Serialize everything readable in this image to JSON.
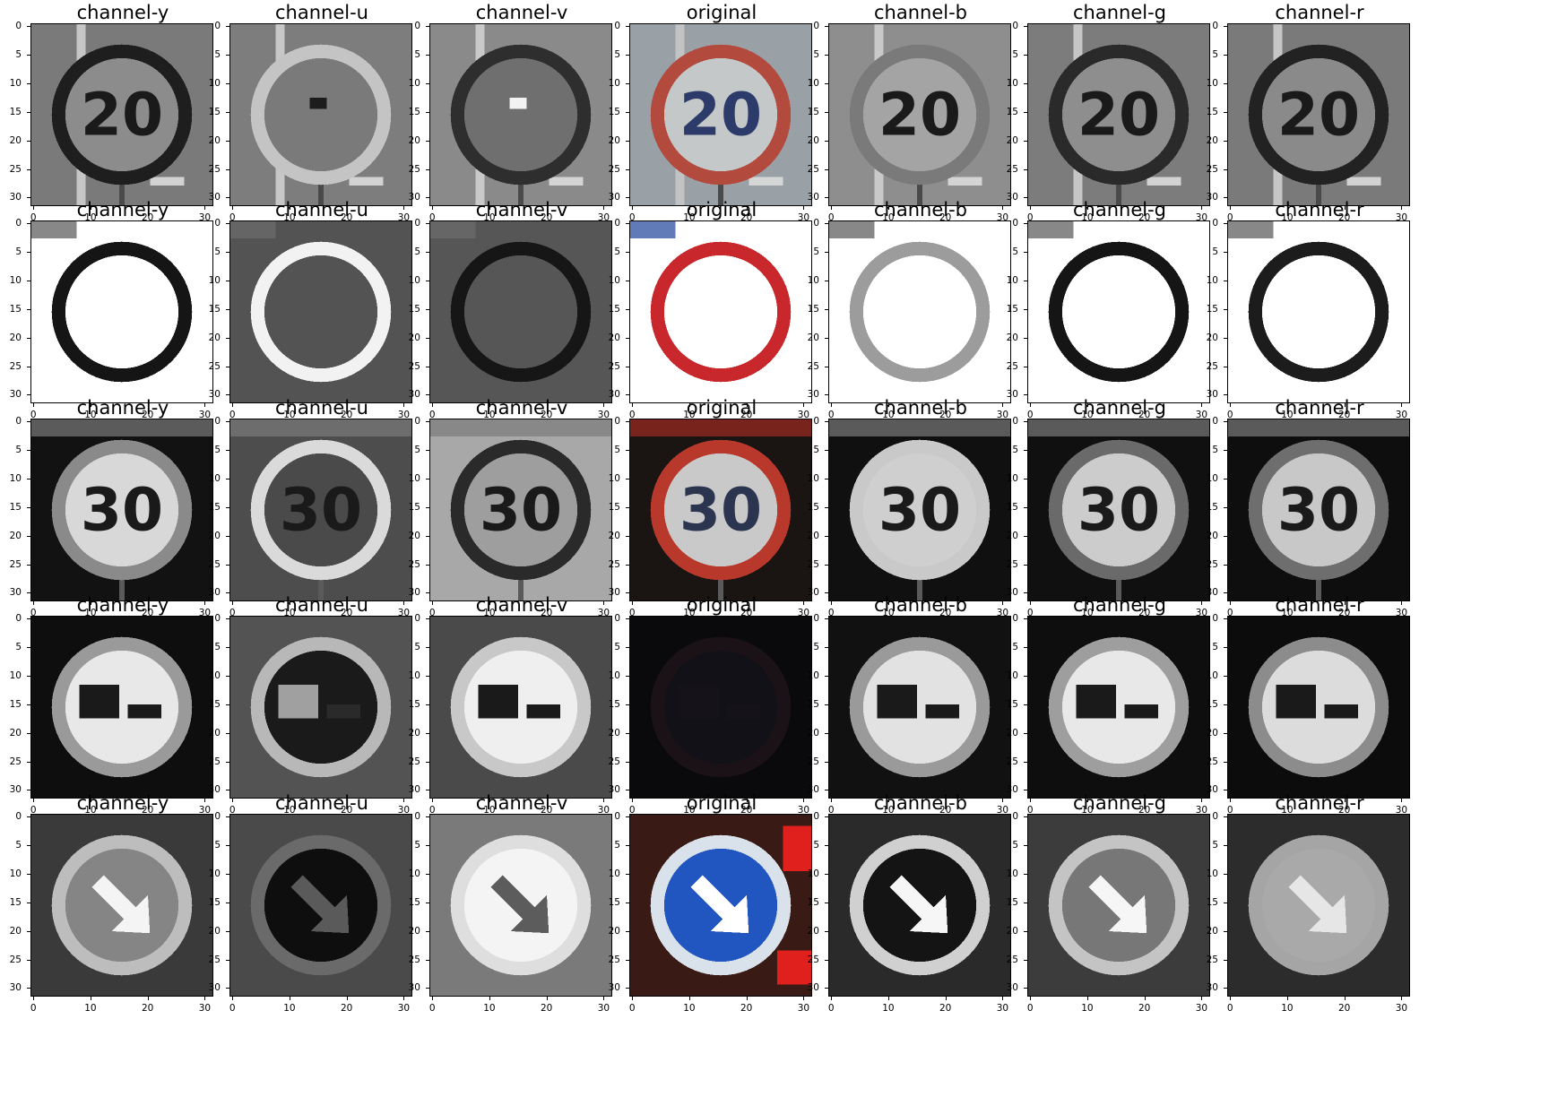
{
  "figure": {
    "rows": [
      {
        "sign": "speed-limit-20",
        "panels": [
          {
            "title": "channel-y",
            "mode": "gray",
            "bg": "#7a7a7a",
            "fg": "#1e1e1e",
            "text": "20",
            "shape": "ring-text",
            "fill": "#8c8c8c"
          },
          {
            "title": "channel-u",
            "mode": "gray",
            "bg": "#7d7d7d",
            "fg": "#c4c4c4",
            "text": "",
            "shape": "ring-dot",
            "fill": "#7a7a7a"
          },
          {
            "title": "channel-v",
            "mode": "gray",
            "bg": "#8a8a8a",
            "fg": "#2e2e2e",
            "text": "",
            "shape": "ring-dot",
            "fill": "#6f6f6f"
          },
          {
            "title": "original",
            "mode": "color",
            "bg": "#9aa1a6",
            "fg": "#b24a3d",
            "text": "20",
            "shape": "ring-text",
            "fill": "#c4c8c8",
            "textColor": "#2d3b6a"
          },
          {
            "title": "channel-b",
            "mode": "gray",
            "bg": "#8e8e8e",
            "fg": "#7a7a7a",
            "text": "20",
            "shape": "ring-text",
            "fill": "#a4a4a4"
          },
          {
            "title": "channel-g",
            "mode": "gray",
            "bg": "#7c7c7c",
            "fg": "#2a2a2a",
            "text": "20",
            "shape": "ring-text",
            "fill": "#8e8e8e"
          },
          {
            "title": "channel-r",
            "mode": "gray",
            "bg": "#7a7a7a",
            "fg": "#222222",
            "text": "20",
            "shape": "ring-text",
            "fill": "#8a8a8a"
          }
        ]
      },
      {
        "sign": "no-vehicles",
        "panels": [
          {
            "title": "channel-y",
            "mode": "gray",
            "bg": "#ffffff",
            "fg": "#151515",
            "text": "",
            "shape": "ring",
            "fill": "#ffffff"
          },
          {
            "title": "channel-u",
            "mode": "gray",
            "bg": "#535353",
            "fg": "#f2f2f2",
            "text": "",
            "shape": "ring",
            "fill": "#535353"
          },
          {
            "title": "channel-v",
            "mode": "gray",
            "bg": "#565656",
            "fg": "#161616",
            "text": "",
            "shape": "ring",
            "fill": "#565656"
          },
          {
            "title": "original",
            "mode": "color",
            "bg": "#ffffff",
            "fg": "#c8282c",
            "text": "",
            "shape": "ring",
            "fill": "#ffffff"
          },
          {
            "title": "channel-b",
            "mode": "gray",
            "bg": "#ffffff",
            "fg": "#9c9c9c",
            "text": "",
            "shape": "ring",
            "fill": "#ffffff"
          },
          {
            "title": "channel-g",
            "mode": "gray",
            "bg": "#ffffff",
            "fg": "#151515",
            "text": "",
            "shape": "ring",
            "fill": "#ffffff"
          },
          {
            "title": "channel-r",
            "mode": "gray",
            "bg": "#ffffff",
            "fg": "#1c1c1c",
            "text": "",
            "shape": "ring",
            "fill": "#ffffff"
          }
        ]
      },
      {
        "sign": "speed-limit-30",
        "panels": [
          {
            "title": "channel-y",
            "mode": "gray",
            "bg": "#121212",
            "fg": "#8a8a8a",
            "text": "30",
            "shape": "ring-text",
            "fill": "#d8d8d8"
          },
          {
            "title": "channel-u",
            "mode": "gray",
            "bg": "#4d4d4d",
            "fg": "#dadada",
            "text": "30",
            "shape": "ring-text",
            "fill": "#4a4a4a"
          },
          {
            "title": "channel-v",
            "mode": "gray",
            "bg": "#a8a8a8",
            "fg": "#2a2a2a",
            "text": "30",
            "shape": "ring-text",
            "fill": "#9e9e9e"
          },
          {
            "title": "original",
            "mode": "color",
            "bg": "#1a1512",
            "fg": "#b8392c",
            "text": "30",
            "shape": "ring-text",
            "fill": "#c9c9c9",
            "textColor": "#2c3550"
          },
          {
            "title": "channel-b",
            "mode": "gray",
            "bg": "#101010",
            "fg": "#c9c9c9",
            "text": "30",
            "shape": "ring-text",
            "fill": "#cfcfcf"
          },
          {
            "title": "channel-g",
            "mode": "gray",
            "bg": "#101010",
            "fg": "#6a6a6a",
            "text": "30",
            "shape": "ring-text",
            "fill": "#cccccc"
          },
          {
            "title": "channel-r",
            "mode": "gray",
            "bg": "#0e0e0e",
            "fg": "#6e6e6e",
            "text": "30",
            "shape": "ring-text",
            "fill": "#c8c8c8"
          }
        ]
      },
      {
        "sign": "no-overtaking-trucks",
        "panels": [
          {
            "title": "channel-y",
            "mode": "gray",
            "bg": "#0e0e0e",
            "fg": "#9a9a9a",
            "text": "",
            "shape": "ring-truck",
            "fill": "#e8e8e8"
          },
          {
            "title": "channel-u",
            "mode": "gray",
            "bg": "#535353",
            "fg": "#b8b8b8",
            "text": "",
            "shape": "ring-truck",
            "fill": "#1a1a1a"
          },
          {
            "title": "channel-v",
            "mode": "gray",
            "bg": "#4a4a4a",
            "fg": "#c8c8c8",
            "text": "",
            "shape": "ring-truck",
            "fill": "#efefef"
          },
          {
            "title": "original",
            "mode": "color",
            "bg": "#0a090c",
            "fg": "#1a1216",
            "text": "",
            "shape": "ring-truck",
            "fill": "#121118"
          },
          {
            "title": "channel-b",
            "mode": "gray",
            "bg": "#111111",
            "fg": "#9a9a9a",
            "text": "",
            "shape": "ring-truck",
            "fill": "#e2e2e2"
          },
          {
            "title": "channel-g",
            "mode": "gray",
            "bg": "#0e0e0e",
            "fg": "#9e9e9e",
            "text": "",
            "shape": "ring-truck",
            "fill": "#e8e8e8"
          },
          {
            "title": "channel-r",
            "mode": "gray",
            "bg": "#0c0c0c",
            "fg": "#8c8c8c",
            "text": "",
            "shape": "ring-truck",
            "fill": "#dcdcdc"
          }
        ]
      },
      {
        "sign": "keep-right",
        "panels": [
          {
            "title": "channel-y",
            "mode": "gray",
            "bg": "#3a3a3a",
            "fg": "#bdbdbd",
            "text": "",
            "shape": "ring-arrow",
            "fill": "#858585",
            "arrow": "#f4f4f4"
          },
          {
            "title": "channel-u",
            "mode": "gray",
            "bg": "#4a4a4a",
            "fg": "#6a6a6a",
            "text": "",
            "shape": "ring-arrow",
            "fill": "#0e0e0e",
            "arrow": "#5a5a5a"
          },
          {
            "title": "channel-v",
            "mode": "gray",
            "bg": "#7a7a7a",
            "fg": "#dedede",
            "text": "",
            "shape": "ring-arrow",
            "fill": "#f4f4f4",
            "arrow": "#5c5c5c"
          },
          {
            "title": "original",
            "mode": "color",
            "bg": "#3a1a14",
            "fg": "#d9e1ea",
            "text": "",
            "shape": "ring-arrow",
            "fill": "#2156c0",
            "arrow": "#ffffff",
            "accent": "#e0201c"
          },
          {
            "title": "channel-b",
            "mode": "gray",
            "bg": "#2a2a2a",
            "fg": "#d0d0d0",
            "text": "",
            "shape": "ring-arrow",
            "fill": "#141414",
            "arrow": "#f6f6f6"
          },
          {
            "title": "channel-g",
            "mode": "gray",
            "bg": "#3c3c3c",
            "fg": "#c4c4c4",
            "text": "",
            "shape": "ring-arrow",
            "fill": "#777777",
            "arrow": "#f6f6f6"
          },
          {
            "title": "channel-r",
            "mode": "gray",
            "bg": "#2c2c2c",
            "fg": "#a5a5a5",
            "text": "",
            "shape": "ring-arrow",
            "fill": "#a9a9a9",
            "arrow": "#e6e6e6"
          }
        ]
      }
    ],
    "axis": {
      "yticks": [
        "0",
        "5",
        "10",
        "15",
        "20",
        "25",
        "30"
      ],
      "xticks": [
        "0",
        "10",
        "20",
        "30"
      ],
      "xlim": [
        -0.5,
        31.5
      ],
      "ylim": [
        31.5,
        -0.5
      ]
    }
  }
}
